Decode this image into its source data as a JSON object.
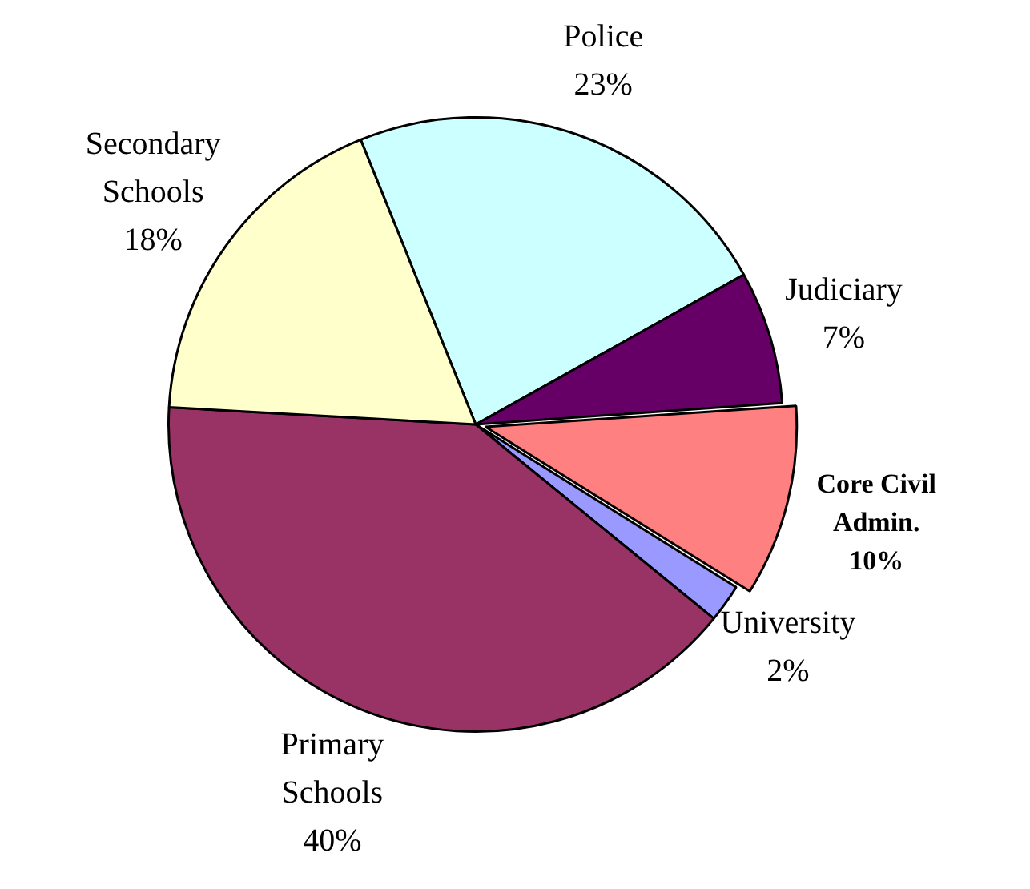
{
  "chart_data": {
    "type": "pie",
    "categories": [
      "Police",
      "Judiciary",
      "Core Civil Admin.",
      "University",
      "Primary Schools",
      "Secondary Schools"
    ],
    "values": [
      23,
      7,
      10,
      2,
      40,
      18
    ],
    "value_labels": [
      "23%",
      "7%",
      "10%",
      "2%",
      "40%",
      "18%"
    ],
    "colors": [
      "#ccffff",
      "#660066",
      "#ff8080",
      "#9999ff",
      "#993366",
      "#ffffcc"
    ],
    "legend": false
  }
}
